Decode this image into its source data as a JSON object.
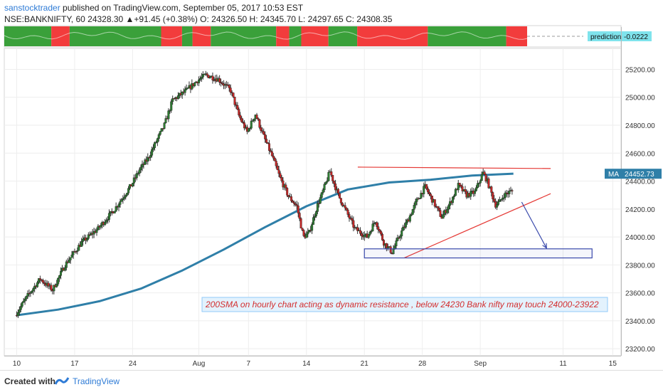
{
  "header": {
    "user": "sanstocktrader",
    "published_text": "published on TradingView.com, September 05, 2017 10:53 EST",
    "symbol_line": "NSE:BANKNIFTY, 60  24328.30 ▲+91.45 (+0.38%)  O: 24326.50  H: 24345.70  L: 24297.65  C: 24308.35"
  },
  "indicator": {
    "label": "prediction",
    "value": "-0.0222",
    "segments": [
      {
        "color": "green",
        "start": 0,
        "end": 0.09
      },
      {
        "color": "red",
        "start": 0.09,
        "end": 0.125
      },
      {
        "color": "green",
        "start": 0.125,
        "end": 0.3
      },
      {
        "color": "red",
        "start": 0.3,
        "end": 0.34
      },
      {
        "color": "green",
        "start": 0.34,
        "end": 0.36
      },
      {
        "color": "red",
        "start": 0.36,
        "end": 0.395
      },
      {
        "color": "green",
        "start": 0.395,
        "end": 0.52
      },
      {
        "color": "red",
        "start": 0.52,
        "end": 0.545
      },
      {
        "color": "green",
        "start": 0.545,
        "end": 0.568
      },
      {
        "color": "red",
        "start": 0.568,
        "end": 0.62
      },
      {
        "color": "green",
        "start": 0.62,
        "end": 0.675
      },
      {
        "color": "red",
        "start": 0.675,
        "end": 0.81
      },
      {
        "color": "green",
        "start": 0.81,
        "end": 0.96
      },
      {
        "color": "red",
        "start": 0.96,
        "end": 1.0
      }
    ]
  },
  "chart_data": {
    "type": "candlestick",
    "title": "NSE:BANKNIFTY, 60",
    "ylim": [
      23150,
      25350
    ],
    "y_ticks": [
      "25200.00",
      "25000.00",
      "24800.00",
      "24600.00",
      "24400.00",
      "24200.00",
      "24000.00",
      "23800.00",
      "23600.00",
      "23400.00",
      "23200.00"
    ],
    "x_ticks": [
      "10",
      "17",
      "24",
      "Aug",
      "7",
      "14",
      "21",
      "28",
      "Sep",
      "11",
      "15"
    ],
    "x_tick_positions": [
      0,
      7,
      14,
      22,
      28,
      35,
      42,
      49,
      56,
      66,
      72
    ],
    "price_path": [
      [
        0,
        23440
      ],
      [
        1.5,
        23580
      ],
      [
        3,
        23700
      ],
      [
        4.5,
        23620
      ],
      [
        6,
        23800
      ],
      [
        8,
        23960
      ],
      [
        10,
        24060
      ],
      [
        12,
        24200
      ],
      [
        14,
        24370
      ],
      [
        15,
        24480
      ],
      [
        16,
        24560
      ],
      [
        18,
        24800
      ],
      [
        19,
        24980
      ],
      [
        20.5,
        25040
      ],
      [
        22,
        25120
      ],
      [
        23,
        25160
      ],
      [
        24.5,
        25130
      ],
      [
        26,
        25050
      ],
      [
        27,
        24870
      ],
      [
        28,
        24750
      ],
      [
        29,
        24880
      ],
      [
        30,
        24720
      ],
      [
        31,
        24580
      ],
      [
        32,
        24420
      ],
      [
        33,
        24290
      ],
      [
        34,
        24220
      ],
      [
        34.8,
        24000
      ],
      [
        35.5,
        24030
      ],
      [
        36.5,
        24230
      ],
      [
        37,
        24300
      ],
      [
        38,
        24470
      ],
      [
        39,
        24300
      ],
      [
        40,
        24180
      ],
      [
        41,
        24060
      ],
      [
        42.5,
        24000
      ],
      [
        43.5,
        24120
      ],
      [
        44.5,
        23960
      ],
      [
        45.5,
        23890
      ],
      [
        46.5,
        24020
      ],
      [
        47.5,
        24130
      ],
      [
        48.5,
        24260
      ],
      [
        49.5,
        24360
      ],
      [
        50.5,
        24250
      ],
      [
        51.5,
        24140
      ],
      [
        52.5,
        24240
      ],
      [
        53.5,
        24370
      ],
      [
        54.5,
        24300
      ],
      [
        55.5,
        24320
      ],
      [
        56.5,
        24460
      ],
      [
        57,
        24400
      ],
      [
        58,
        24230
      ],
      [
        58.5,
        24250
      ],
      [
        59,
        24300
      ],
      [
        60,
        24330
      ]
    ],
    "ma": {
      "label": "MA",
      "value_label": "24452.73",
      "points": [
        [
          0,
          23440
        ],
        [
          5,
          23480
        ],
        [
          10,
          23540
        ],
        [
          15,
          23630
        ],
        [
          20,
          23760
        ],
        [
          25,
          23910
        ],
        [
          30,
          24070
        ],
        [
          35,
          24220
        ],
        [
          40,
          24340
        ],
        [
          45,
          24390
        ],
        [
          50,
          24410
        ],
        [
          55,
          24440
        ],
        [
          60,
          24453
        ]
      ]
    },
    "annotations": {
      "resistance_line": [
        [
          41.2,
          24500
        ],
        [
          64.5,
          24490
        ]
      ],
      "support_line": [
        [
          46.8,
          23850
        ],
        [
          64.5,
          24310
        ]
      ],
      "arrow": [
        [
          61,
          24250
        ],
        [
          64,
          23920
        ]
      ],
      "target_box": {
        "x0": 42,
        "x1": 69.5,
        "y0": 23850,
        "y1": 23915
      },
      "text": "200SMA on hourly chart acting as dynamic resistance , below 24230 Bank nifty may touch 24000-23922"
    }
  },
  "footer": {
    "created_with": "Created with",
    "brand": "TradingView"
  }
}
